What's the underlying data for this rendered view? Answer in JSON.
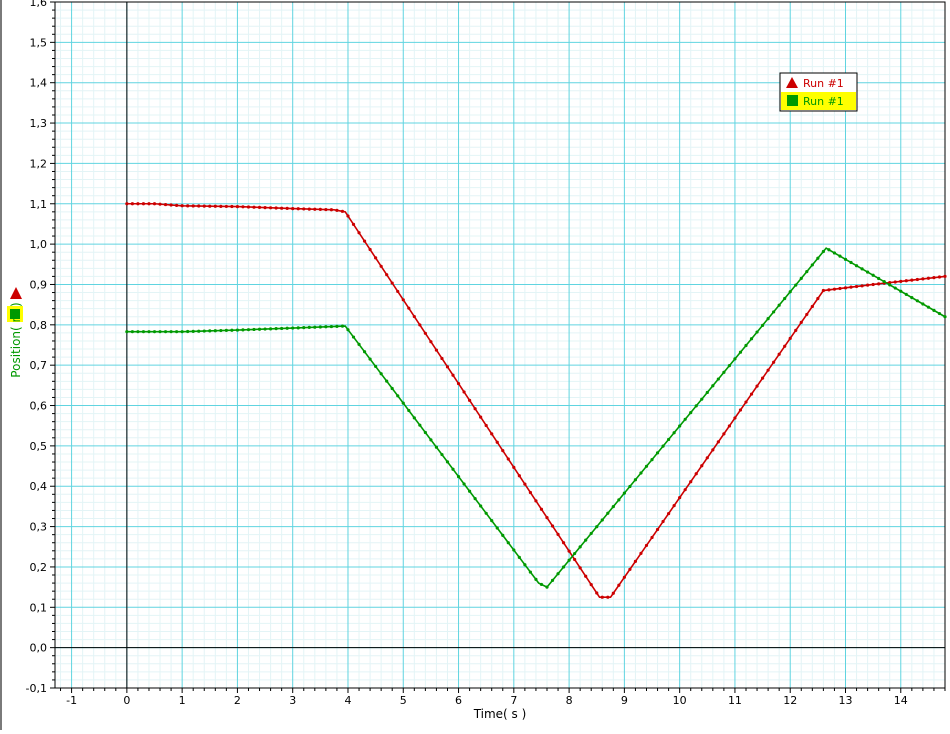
{
  "chart_data": {
    "type": "line",
    "title": "",
    "xlabel": "Time( s )",
    "ylabel": "Position( m )",
    "xlim": [
      -1.3,
      14.8
    ],
    "ylim": [
      -0.1,
      1.6
    ],
    "x_ticks": [
      -1,
      0,
      1,
      2,
      3,
      4,
      5,
      6,
      7,
      8,
      9,
      10,
      11,
      12,
      13,
      14
    ],
    "x_tick_labels": [
      "-1",
      "0",
      "1",
      "2",
      "3",
      "4",
      "5",
      "6",
      "7",
      "8",
      "9",
      "10",
      "11",
      "12",
      "13",
      "14"
    ],
    "y_ticks": [
      -0.1,
      0.0,
      0.1,
      0.2,
      0.3,
      0.4,
      0.5,
      0.6,
      0.7,
      0.8,
      0.9,
      1.0,
      1.1,
      1.2,
      1.3,
      1.4,
      1.5,
      1.6
    ],
    "y_tick_labels": [
      "-0,1",
      "0,0",
      "0,1",
      "0,2",
      "0,3",
      "0,4",
      "0,5",
      "0,6",
      "0,7",
      "0,8",
      "0,9",
      "1,0",
      "1,1",
      "1,2",
      "1,3",
      "1,4",
      "1,5",
      "1,6"
    ],
    "grid": true,
    "legend_position": "top-right",
    "series": [
      {
        "name": "Run #1",
        "color": "#cc0000",
        "marker": "triangle",
        "points": [
          [
            0,
            1.1
          ],
          [
            0.5,
            1.1
          ],
          [
            1,
            1.095
          ],
          [
            2,
            1.093
          ],
          [
            3,
            1.088
          ],
          [
            3.75,
            1.085
          ],
          [
            3.95,
            1.08
          ],
          [
            8.55,
            0.125
          ],
          [
            8.75,
            0.125
          ],
          [
            12.6,
            0.885
          ],
          [
            13.5,
            0.9
          ],
          [
            14.8,
            0.92
          ]
        ]
      },
      {
        "name": "Run #1",
        "color": "#009900",
        "marker": "square",
        "points": [
          [
            0,
            0.783
          ],
          [
            1,
            0.783
          ],
          [
            2,
            0.787
          ],
          [
            3,
            0.792
          ],
          [
            3.95,
            0.797
          ],
          [
            7.45,
            0.16
          ],
          [
            7.6,
            0.15
          ],
          [
            12.65,
            0.99
          ],
          [
            14.8,
            0.82
          ]
        ]
      }
    ]
  }
}
